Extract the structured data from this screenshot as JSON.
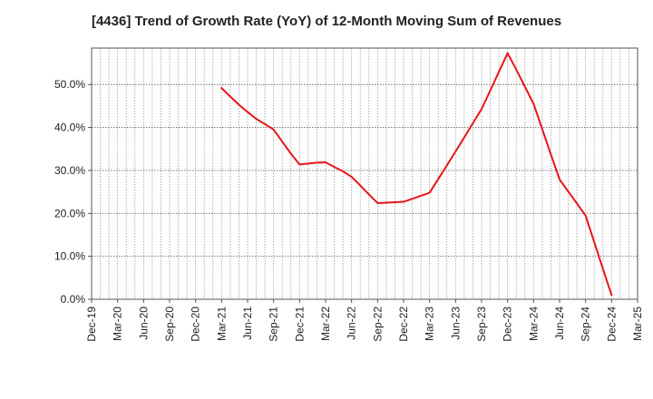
{
  "chart_data": {
    "type": "line",
    "title": "[4436]  Trend of Growth Rate (YoY) of 12-Month Moving Sum of Revenues",
    "xlabel": "",
    "ylabel": "",
    "x_ticks": [
      "Dec-19",
      "Mar-20",
      "Jun-20",
      "Sep-20",
      "Dec-20",
      "Mar-21",
      "Jun-21",
      "Sep-21",
      "Dec-21",
      "Mar-22",
      "Jun-22",
      "Sep-22",
      "Dec-22",
      "Mar-23",
      "Jun-23",
      "Sep-23",
      "Dec-23",
      "Mar-24",
      "Jun-24",
      "Sep-24",
      "Dec-24",
      "Mar-25"
    ],
    "y_ticks": [
      "0.0%",
      "10.0%",
      "20.0%",
      "30.0%",
      "40.0%",
      "50.0%"
    ],
    "y_tick_values": [
      0,
      10,
      20,
      30,
      40,
      50
    ],
    "ylim": [
      0,
      58.5
    ],
    "grid": true,
    "line_color": "#e8141c",
    "series": [
      {
        "x": [
          "Mar-21",
          "Apr-21",
          "May-21",
          "Jun-21",
          "Jul-21",
          "Aug-21",
          "Sep-21",
          "Oct-21",
          "Nov-21",
          "Dec-21",
          "Jan-22",
          "Feb-22",
          "Mar-22",
          "Apr-22",
          "May-22",
          "Jun-22",
          "Jul-22",
          "Aug-22",
          "Sep-22",
          "Oct-22",
          "Nov-22",
          "Dec-22",
          "Jan-23",
          "Feb-23",
          "Mar-23",
          "Apr-23",
          "May-23",
          "Jun-23",
          "Jul-23",
          "Aug-23",
          "Sep-23",
          "Oct-23",
          "Nov-23",
          "Dec-23",
          "Jan-24",
          "Feb-24",
          "Mar-24",
          "Apr-24",
          "May-24",
          "Jun-24",
          "Jul-24",
          "Aug-24",
          "Sep-24",
          "Oct-24",
          "Nov-24",
          "Dec-24"
        ],
        "values": [
          49.2,
          47.2,
          45.3,
          43.6,
          42.0,
          40.8,
          39.5,
          36.7,
          33.9,
          31.4,
          31.6,
          31.8,
          31.9,
          30.8,
          29.8,
          28.5,
          26.5,
          24.4,
          22.4,
          22.5,
          22.6,
          22.7,
          23.4,
          24.1,
          24.8,
          28.0,
          31.2,
          34.4,
          37.7,
          41.0,
          44.3,
          48.6,
          53.0,
          57.3,
          53.5,
          49.5,
          45.5,
          39.6,
          33.7,
          27.9,
          25.1,
          22.3,
          19.5,
          13.3,
          7.1,
          1.0
        ]
      }
    ]
  }
}
